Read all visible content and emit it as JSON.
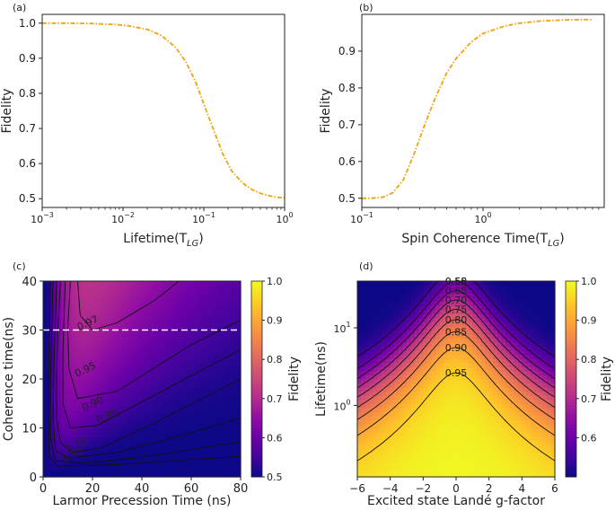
{
  "chart_data": [
    {
      "id": "a",
      "type": "line",
      "panel_label": "(a)",
      "xlabel": "Lifetime(T",
      "xlabel_sub": "LG",
      "xlabel_end": ")",
      "ylabel": "Fidelity",
      "xscale": "log",
      "xlim": [
        0.001,
        1
      ],
      "ylim": [
        0.475,
        1.025
      ],
      "xticks": [
        0.001,
        0.01,
        0.1,
        1
      ],
      "xtick_labels": [
        {
          "b": "10",
          "e": "−3"
        },
        {
          "b": "10",
          "e": "−2"
        },
        {
          "b": "10",
          "e": "−1"
        },
        {
          "b": "10",
          "e": "0"
        }
      ],
      "yticks": [
        0.5,
        0.6,
        0.7,
        0.8,
        0.9,
        1.0
      ],
      "ytick_labels": [
        "0.5",
        "0.6",
        "0.7",
        "0.8",
        "0.9",
        "1.0"
      ],
      "line_color": "#f0a30a",
      "series": [
        {
          "name": "Fidelity",
          "x": [
            0.001,
            0.002,
            0.004,
            0.008,
            0.012,
            0.02,
            0.03,
            0.045,
            0.06,
            0.08,
            0.1,
            0.13,
            0.17,
            0.22,
            0.3,
            0.4,
            0.55,
            0.75,
            1.0
          ],
          "y": [
            1.0,
            1.0,
            0.999,
            0.996,
            0.992,
            0.982,
            0.965,
            0.93,
            0.89,
            0.83,
            0.77,
            0.7,
            0.63,
            0.58,
            0.545,
            0.525,
            0.512,
            0.505,
            0.502
          ]
        }
      ]
    },
    {
      "id": "b",
      "type": "line",
      "panel_label": "(b)",
      "xlabel": "Spin Coherence Time(T",
      "xlabel_sub": "LG",
      "xlabel_end": ")",
      "ylabel": "Fidelity",
      "xscale": "log",
      "xlim": [
        0.1,
        10
      ],
      "ylim": [
        0.475,
        1.0
      ],
      "xticks": [
        0.1,
        1
      ],
      "xtick_labels": [
        {
          "b": "10",
          "e": "−1"
        },
        {
          "b": "10",
          "e": "0"
        }
      ],
      "yticks": [
        0.5,
        0.6,
        0.7,
        0.8,
        0.9
      ],
      "ytick_labels": [
        "0.5",
        "0.6",
        "0.7",
        "0.8",
        "0.9"
      ],
      "line_color": "#f0a30a",
      "series": [
        {
          "name": "Fidelity",
          "x": [
            0.1,
            0.12,
            0.15,
            0.18,
            0.22,
            0.27,
            0.33,
            0.4,
            0.5,
            0.6,
            0.8,
            1.0,
            1.5,
            2,
            3,
            5,
            8
          ],
          "y": [
            0.5,
            0.5,
            0.503,
            0.515,
            0.55,
            0.62,
            0.7,
            0.77,
            0.84,
            0.88,
            0.925,
            0.948,
            0.968,
            0.976,
            0.982,
            0.985,
            0.986
          ]
        }
      ]
    },
    {
      "id": "c",
      "type": "heatmap",
      "panel_label": "(c)",
      "xlabel": "Larmor Precession Time (ns)",
      "ylabel": "Coherence time(ns)",
      "xlim": [
        0,
        80
      ],
      "ylim": [
        0,
        40
      ],
      "xticks": [
        0,
        20,
        40,
        60,
        80
      ],
      "yticks": [
        0,
        10,
        20,
        30,
        40
      ],
      "colorbar": {
        "label": "Fidelity",
        "range": [
          0.5,
          1.0
        ],
        "ticks": [
          0.5,
          0.6,
          0.7,
          0.8,
          0.9,
          1.0
        ],
        "tick_labels": [
          "0.5",
          "0.6",
          "0.7",
          "0.8",
          "0.9",
          "1.0"
        ]
      },
      "contour_labels": [
        {
          "text": "0.97",
          "x": 18,
          "y": 31.5
        },
        {
          "text": "0.95",
          "x": 17,
          "y": 22
        },
        {
          "text": "0.90",
          "x": 20,
          "y": 15
        },
        {
          "text": "0.80",
          "x": 26,
          "y": 12.5
        },
        {
          "text": "0.70",
          "x": 13.5,
          "y": 6.5
        },
        {
          "text": "0.60",
          "x": 12,
          "y": 4.5
        }
      ],
      "dashed_line": {
        "y": 30,
        "x_range": [
          0,
          80
        ]
      }
    },
    {
      "id": "d",
      "type": "heatmap",
      "panel_label": "(d)",
      "xlabel": "Excited state Landé g-factor",
      "ylabel": "Lifetime(ns)",
      "xlim": [
        -6,
        6
      ],
      "yscale": "log",
      "ylim": [
        0.12,
        40
      ],
      "xticks": [
        -6,
        -4,
        -2,
        0,
        2,
        4,
        6
      ],
      "xtick_labels": [
        "−6",
        "−4",
        "−2",
        "0",
        "2",
        "4",
        "6"
      ],
      "yticks": [
        1,
        10
      ],
      "ytick_labels": [
        {
          "b": "10",
          "e": "0"
        },
        {
          "b": "10",
          "e": "1"
        }
      ],
      "colorbar": {
        "label": "Fidelity",
        "range": [
          0.5,
          1.0
        ],
        "ticks": [
          0.6,
          0.7,
          0.8,
          0.9,
          1.0
        ],
        "tick_labels": [
          "0.6",
          "0.7",
          "0.8",
          "0.9",
          "1.0"
        ]
      },
      "contour_labels": [
        {
          "text": "0.55",
          "level": 0.55
        },
        {
          "text": "0.60",
          "level": 0.6
        },
        {
          "text": "0.65",
          "level": 0.65
        },
        {
          "text": "0.70",
          "level": 0.7
        },
        {
          "text": "0.75",
          "level": 0.75
        },
        {
          "text": "0.80",
          "level": 0.8
        },
        {
          "text": "0.85",
          "level": 0.85
        },
        {
          "text": "0.90",
          "level": 0.9
        },
        {
          "text": "0.95",
          "level": 0.95
        }
      ]
    }
  ]
}
